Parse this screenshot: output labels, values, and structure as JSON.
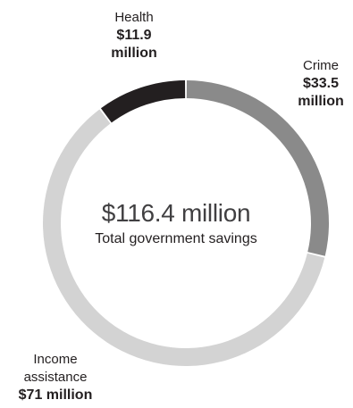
{
  "chart_data": {
    "type": "pie",
    "donut": true,
    "unit": "million",
    "center_total": "$116.4 million",
    "center_caption": "Total government savings",
    "categories": [
      "Crime",
      "Income assistance",
      "Health"
    ],
    "values": [
      33.5,
      71,
      11.9
    ],
    "value_labels": [
      "$33.5 million",
      "$71 million",
      "$11.9 million"
    ],
    "colors": [
      "#8a8a8a",
      "#d3d3d3",
      "#231f20"
    ],
    "start_angle_deg": 0,
    "direction": "clockwise"
  }
}
